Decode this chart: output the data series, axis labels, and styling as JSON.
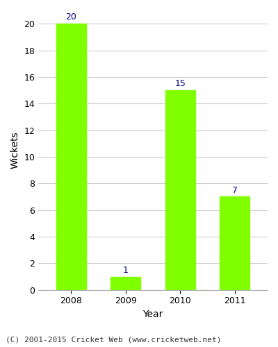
{
  "categories": [
    "2008",
    "2009",
    "2010",
    "2011"
  ],
  "values": [
    20,
    1,
    15,
    7
  ],
  "bar_color": "#7FFF00",
  "bar_edge_color": "#7FFF00",
  "xlabel": "Year",
  "ylabel": "Wickets",
  "ylim": [
    0,
    21
  ],
  "yticks": [
    0,
    2,
    4,
    6,
    8,
    10,
    12,
    14,
    16,
    18,
    20
  ],
  "annotation_color": "#00008B",
  "annotation_fontsize": 9,
  "label_fontsize": 10,
  "tick_fontsize": 9,
  "background_color": "#ffffff",
  "plot_bg_color": "#ffffff",
  "footer_text": "(C) 2001-2015 Cricket Web (www.cricketweb.net)",
  "footer_fontsize": 8,
  "grid_color": "#cccccc",
  "bar_width": 0.55
}
